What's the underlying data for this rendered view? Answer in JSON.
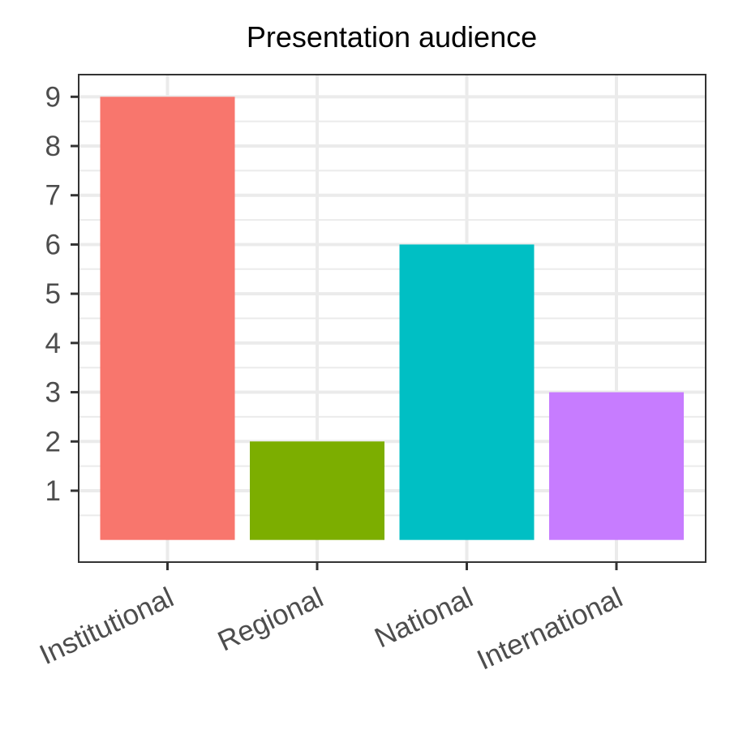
{
  "chart_data": {
    "type": "bar",
    "title": "Presentation audience",
    "xlabel": "",
    "ylabel": "",
    "categories": [
      "Institutional",
      "Regional",
      "National",
      "International"
    ],
    "values": [
      9,
      2,
      6,
      3
    ],
    "colors": [
      "#F8766D",
      "#7CAE00",
      "#00BFC4",
      "#C77CFF"
    ],
    "yticks": [
      1,
      2,
      3,
      4,
      5,
      6,
      7,
      8,
      9
    ],
    "ylim": [
      -0.45,
      9.45
    ],
    "grid": true,
    "legend": "none",
    "x_label_rotation": -25
  }
}
